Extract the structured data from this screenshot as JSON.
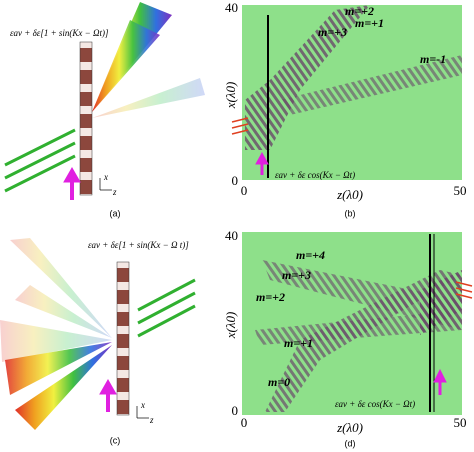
{
  "panels": [
    {
      "caption": "(a)",
      "formula": "εav + δε[1 + sin(Kx − Ωt)]",
      "x_axis": "x",
      "z_axis": "z"
    },
    {
      "caption": "(b)",
      "formula": "εav + δε cos(Kx − Ωt)",
      "y_label": "x(λ0)",
      "x_label": "z(λ0)",
      "y_ticks": [
        "40",
        "0"
      ],
      "x_ticks": [
        "0",
        "50"
      ],
      "modes": [
        "m=+2",
        "m=+1",
        "m=+3",
        "m=-1"
      ]
    },
    {
      "caption": "(c)",
      "formula": "εav + δε[1 + sin(Kx − Ω t)]",
      "x_axis": "x",
      "z_axis": "z"
    },
    {
      "caption": "(d)",
      "formula": "εav + δε cos(Kx − Ωt)",
      "y_label": "x(λ0)",
      "x_label": "z(λ0)",
      "y_ticks": [
        "40",
        "0"
      ],
      "x_ticks": [
        "0",
        "50"
      ],
      "modes": [
        "m=+4",
        "m=+3",
        "m=+2",
        "m=+1",
        "m=0"
      ]
    }
  ]
}
